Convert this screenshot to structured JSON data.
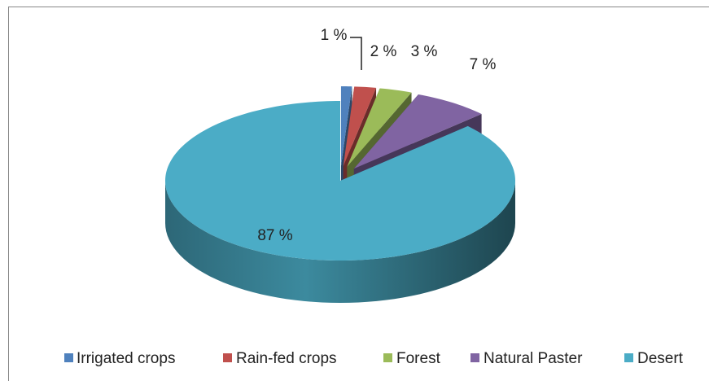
{
  "chart_data": {
    "type": "pie3d",
    "categories": [
      "Irrigated crops",
      "Rain-fed crops",
      "Forest",
      "Natural Paster",
      "Desert"
    ],
    "values": [
      1,
      2,
      3,
      7,
      87
    ],
    "value_labels": [
      "1 %",
      "2 %",
      "3 %",
      "7 %",
      "87 %"
    ],
    "colors": [
      "#4f81bd",
      "#c0504d",
      "#9bbb59",
      "#8064a2",
      "#4bacc6"
    ],
    "legend": "bottom"
  }
}
